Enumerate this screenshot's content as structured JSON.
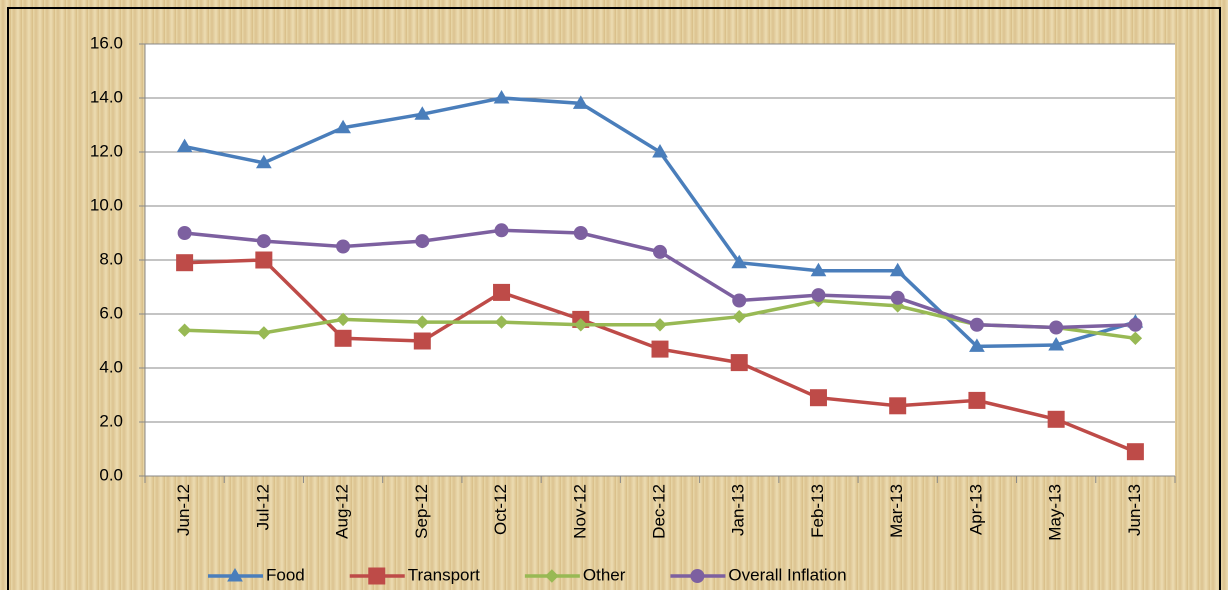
{
  "chart_data": {
    "type": "line",
    "categories": [
      "Jun-12",
      "Jul-12",
      "Aug-12",
      "Sep-12",
      "Oct-12",
      "Nov-12",
      "Dec-12",
      "Jan-13",
      "Feb-13",
      "Mar-13",
      "Apr-13",
      "May-13",
      "Jun-13"
    ],
    "series": [
      {
        "name": "Food",
        "color": "#4a7ebb",
        "marker": "triangle",
        "values": [
          12.2,
          11.6,
          12.9,
          13.4,
          14.0,
          13.8,
          12.0,
          7.9,
          7.6,
          7.6,
          4.8,
          4.85,
          5.7
        ]
      },
      {
        "name": "Transport",
        "color": "#be4b48",
        "marker": "square",
        "values": [
          7.9,
          8.0,
          5.1,
          5.0,
          6.8,
          5.8,
          4.7,
          4.2,
          2.9,
          2.6,
          2.8,
          2.1,
          0.9
        ]
      },
      {
        "name": "Other",
        "color": "#98b954",
        "marker": "diamond",
        "values": [
          5.4,
          5.3,
          5.8,
          5.7,
          5.7,
          5.6,
          5.6,
          5.9,
          6.5,
          6.3,
          5.6,
          5.5,
          5.1
        ]
      },
      {
        "name": "Overall Inflation",
        "color": "#7d60a0",
        "marker": "circle",
        "values": [
          9.0,
          8.7,
          8.5,
          8.7,
          9.1,
          9.0,
          8.3,
          6.5,
          6.7,
          6.6,
          5.6,
          5.5,
          5.6
        ]
      }
    ],
    "ylim": [
      0,
      16
    ],
    "yticks": [
      {
        "value": 0,
        "label": "0.0"
      },
      {
        "value": 2,
        "label": "2.0"
      },
      {
        "value": 4,
        "label": "4.0"
      },
      {
        "value": 6,
        "label": "6.0"
      },
      {
        "value": 8,
        "label": "8.0"
      },
      {
        "value": 10,
        "label": "10.0"
      },
      {
        "value": 12,
        "label": "12.0"
      },
      {
        "value": 14,
        "label": "14.0"
      },
      {
        "value": 16,
        "label": "16.0"
      }
    ],
    "grid": true,
    "legend": "bottom"
  }
}
